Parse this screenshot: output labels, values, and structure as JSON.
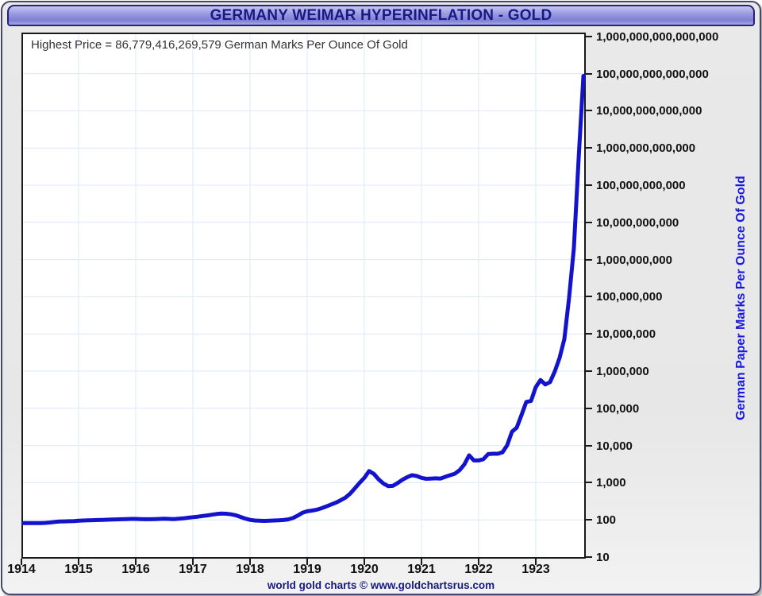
{
  "header": {
    "title": "GERMANY WEIMAR HYPERINFLATION - GOLD"
  },
  "footer": {
    "credit": "world gold charts © www.goldchartsrus.com"
  },
  "colors": {
    "line": "#1313cd",
    "grid": "#dbe8f9",
    "plot_frame": "#1a1a1a",
    "title_text": "#191984",
    "axis_text": "#111111",
    "y_axis_title_text": "#1717e0",
    "title_bar_mid": "#8787d8"
  },
  "chart_data": {
    "type": "line",
    "title": "GERMANY WEIMAR HYPERINFLATION - GOLD",
    "xlabel": "",
    "ylabel": "German Paper Marks Per Ounce Of Gold",
    "y_scale": "log",
    "ylim": [
      10,
      1000000000000000
    ],
    "xlim": [
      1914,
      1923.92
    ],
    "grid": true,
    "legend_position": "none",
    "annotation": "Highest Price = 86,779,416,269,579 German Marks Per Ounce Of Gold",
    "highest_price_marks": 86779416269579,
    "x_ticks": [
      1914,
      1915,
      1916,
      1917,
      1918,
      1919,
      1920,
      1921,
      1922,
      1923
    ],
    "y_ticks": [
      {
        "label": "1,000,000,000,000,000",
        "value": 1000000000000000
      },
      {
        "label": "100,000,000,000,000",
        "value": 100000000000000
      },
      {
        "label": "10,000,000,000,000",
        "value": 10000000000000
      },
      {
        "label": "1,000,000,000,000",
        "value": 1000000000000
      },
      {
        "label": "100,000,000,000",
        "value": 100000000000
      },
      {
        "label": "10,000,000,000",
        "value": 10000000000
      },
      {
        "label": "1,000,000,000",
        "value": 1000000000
      },
      {
        "label": "100,000,000",
        "value": 100000000
      },
      {
        "label": "10,000,000",
        "value": 10000000
      },
      {
        "label": "1,000,000",
        "value": 1000000
      },
      {
        "label": "100,000",
        "value": 100000
      },
      {
        "label": "10,000",
        "value": 10000
      },
      {
        "label": "1,000",
        "value": 1000
      },
      {
        "label": "100",
        "value": 100
      },
      {
        "label": "10",
        "value": 10
      }
    ],
    "series": [
      {
        "name": "German paper marks per ounce of gold (monthly)",
        "start_year": 1914,
        "monthly_values": [
          [
            82,
            82,
            82,
            82,
            82,
            83,
            85,
            88,
            90,
            91,
            92,
            93
          ],
          [
            95,
            96,
            97,
            98,
            99,
            100,
            101,
            102,
            103,
            104,
            105,
            106
          ],
          [
            106,
            105,
            104,
            104,
            105,
            106,
            107,
            106,
            105,
            107,
            110,
            114
          ],
          [
            118,
            122,
            127,
            132,
            138,
            144,
            148,
            146,
            141,
            133,
            120,
            108
          ],
          [
            100,
            96,
            95,
            94,
            95,
            96,
            97,
            99,
            103,
            112,
            130,
            155
          ],
          [
            170,
            178,
            188,
            205,
            230,
            258,
            290,
            335,
            395,
            505,
            700,
            990
          ],
          [
            1350,
            2050,
            1730,
            1230,
            950,
            810,
            820,
            980,
            1200,
            1410,
            1590,
            1510
          ],
          [
            1350,
            1270,
            1290,
            1310,
            1290,
            1440,
            1590,
            1740,
            2170,
            3100,
            5440,
            3970
          ],
          [
            3970,
            4300,
            5870,
            6000,
            6000,
            6550,
            10190,
            23440,
            30300,
            65730,
            148470,
            156870
          ],
          [
            371480,
            577060,
            437990,
            505900,
            985340,
            2273620,
            7305010,
            95504810,
            2043430000,
            522129500000,
            86779416269579,
            86779416269579
          ]
        ]
      }
    ]
  }
}
